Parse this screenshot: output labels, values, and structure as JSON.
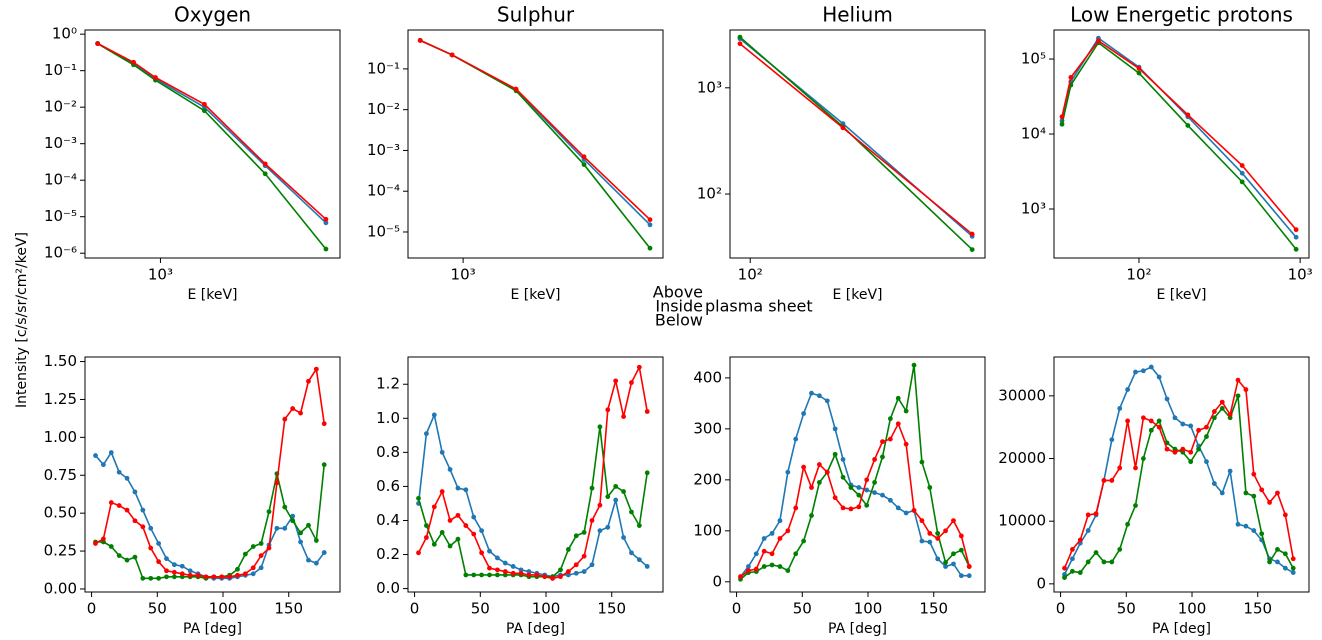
{
  "figure": {
    "ylabel": "Intensity [c/s/sr/cm²/keV]",
    "legend": {
      "labels": [
        "Above",
        "Inside",
        "Below"
      ],
      "colors": [
        "#ff0000",
        "#008000",
        "#0000ff"
      ],
      "text": "plasma sheet"
    }
  },
  "chart_data": [
    {
      "type": "line",
      "title": "Oxygen",
      "xlabel": "E [keV]",
      "xscale": "log",
      "yscale": "log",
      "xlim": [
        380,
        10000
      ],
      "ylim": [
        7.4e-07,
        1.3
      ],
      "xticks": [
        {
          "value": 1000,
          "label": "10³"
        }
      ],
      "yticks": [
        {
          "value": 1,
          "label": "10⁰"
        },
        {
          "value": 0.1,
          "label": "10⁻¹"
        },
        {
          "value": 0.01,
          "label": "10⁻²"
        },
        {
          "value": 0.001,
          "label": "10⁻³"
        },
        {
          "value": 0.0001,
          "label": "10⁻⁴"
        },
        {
          "value": 1e-05,
          "label": "10⁻⁵"
        },
        {
          "value": 1e-06,
          "label": "10⁻⁶"
        }
      ],
      "x": [
        447,
        708,
        938,
        1757,
        3831,
        8350
      ],
      "series": [
        {
          "color": "#1f77b4",
          "values": [
            0.56,
            0.16,
            0.06,
            0.01,
            0.00025,
            6.8e-06
          ]
        },
        {
          "color": "#008000",
          "values": [
            0.55,
            0.145,
            0.055,
            0.008,
            0.00015,
            1.3e-06
          ]
        },
        {
          "color": "#ff0000",
          "values": [
            0.55,
            0.17,
            0.065,
            0.012,
            0.00028,
            8.5e-06
          ]
        }
      ]
    },
    {
      "type": "line",
      "title": "Sulphur",
      "xlabel": "E [keV]",
      "xscale": "log",
      "yscale": "log",
      "xlim": [
        530,
        10000
      ],
      "ylim": [
        2.3e-06,
        0.9
      ],
      "xticks": [
        {
          "value": 1000,
          "label": "10³"
        }
      ],
      "yticks": [
        {
          "value": 0.1,
          "label": "10⁻¹"
        },
        {
          "value": 0.01,
          "label": "10⁻²"
        },
        {
          "value": 0.001,
          "label": "10⁻³"
        },
        {
          "value": 0.0001,
          "label": "10⁻⁴"
        },
        {
          "value": 1e-05,
          "label": "10⁻⁵"
        }
      ],
      "x": [
        610,
        881,
        1841,
        4027,
        8610
      ],
      "series": [
        {
          "color": "#1f77b4",
          "values": [
            0.5,
            0.22,
            0.031,
            0.0006,
            1.5e-05
          ]
        },
        {
          "color": "#008000",
          "values": [
            0.5,
            0.22,
            0.029,
            0.00045,
            4e-06
          ]
        },
        {
          "color": "#ff0000",
          "values": [
            0.5,
            0.22,
            0.032,
            0.0007,
            2e-05
          ]
        }
      ]
    },
    {
      "type": "line",
      "title": "Helium",
      "xlabel": "E [keV]",
      "xscale": "log",
      "yscale": "log",
      "xlim": [
        83,
        870
      ],
      "ylim": [
        25,
        3500
      ],
      "xticks": [
        {
          "value": 100,
          "label": "10²"
        }
      ],
      "yticks": [
        {
          "value": 1000,
          "label": "10³"
        },
        {
          "value": 100,
          "label": "10²"
        }
      ],
      "x": [
        91,
        235,
        773
      ],
      "series": [
        {
          "color": "#1f77b4",
          "values": [
            2900,
            460,
            40
          ]
        },
        {
          "color": "#008000",
          "values": [
            3000,
            430,
            30
          ]
        },
        {
          "color": "#ff0000",
          "values": [
            2600,
            420,
            42
          ]
        }
      ]
    },
    {
      "type": "line",
      "title": "Low Energetic protons",
      "xlabel": "E [keV]",
      "xscale": "log",
      "yscale": "log",
      "xlim": [
        29.7,
        1135
      ],
      "ylim": [
        222,
        244000
      ],
      "xticks": [
        {
          "value": 100,
          "label": "10²"
        },
        {
          "value": 1000,
          "label": "10³"
        }
      ],
      "yticks": [
        {
          "value": 100000,
          "label": "10⁵"
        },
        {
          "value": 10000,
          "label": "10⁴"
        },
        {
          "value": 1000,
          "label": "10³"
        }
      ],
      "x": [
        33.3,
        37.8,
        56,
        100,
        201,
        437,
        944
      ],
      "series": [
        {
          "color": "#1f77b4",
          "values": [
            15000,
            50000,
            190000,
            78000,
            17000,
            3000,
            420
          ]
        },
        {
          "color": "#008000",
          "values": [
            13500,
            45000,
            165000,
            65000,
            13000,
            2300,
            290
          ]
        },
        {
          "color": "#ff0000",
          "values": [
            17000,
            57000,
            175000,
            75000,
            18000,
            3800,
            530
          ]
        }
      ]
    },
    {
      "type": "line",
      "xlabel": "PA [deg]",
      "xlim": [
        -5,
        189
      ],
      "ylim": [
        -0.02,
        1.53
      ],
      "xticks": [
        0,
        50,
        100,
        150
      ],
      "yticks": [
        {
          "value": 0,
          "label": "0.00"
        },
        0.25,
        {
          "value": 0.5,
          "label": "0.50"
        },
        0.75,
        {
          "value": 1,
          "label": "1.00"
        },
        1.25,
        {
          "value": 1.5,
          "label": "1.50"
        }
      ],
      "x": [
        3,
        9,
        15,
        21,
        27,
        33,
        39,
        45,
        51,
        57,
        63,
        69,
        75,
        81,
        87,
        93,
        99,
        105,
        111,
        117,
        123,
        129,
        135,
        141,
        147,
        153,
        159,
        165,
        171,
        177
      ],
      "series": [
        {
          "color": "#1f77b4",
          "values": [
            0.88,
            0.82,
            0.9,
            0.77,
            0.73,
            0.64,
            0.52,
            0.4,
            0.3,
            0.2,
            0.16,
            0.15,
            0.12,
            0.1,
            0.08,
            0.07,
            0.07,
            0.07,
            0.08,
            0.09,
            0.1,
            0.14,
            0.29,
            0.4,
            0.4,
            0.48,
            0.31,
            0.19,
            0.17,
            0.24
          ]
        },
        {
          "color": "#008000",
          "values": [
            0.31,
            0.31,
            0.28,
            0.22,
            0.19,
            0.21,
            0.07,
            0.07,
            0.07,
            0.08,
            0.08,
            0.08,
            0.08,
            0.08,
            0.07,
            0.08,
            0.08,
            0.09,
            0.13,
            0.23,
            0.28,
            0.3,
            0.51,
            0.76,
            0.54,
            0.45,
            0.37,
            0.42,
            0.32,
            0.82
          ]
        },
        {
          "color": "#ff0000",
          "values": [
            0.3,
            0.33,
            0.57,
            0.55,
            0.52,
            0.45,
            0.41,
            0.27,
            0.18,
            0.12,
            0.11,
            0.1,
            0.09,
            0.09,
            0.08,
            0.08,
            0.08,
            0.08,
            0.09,
            0.1,
            0.14,
            0.22,
            0.27,
            0.7,
            1.12,
            1.19,
            1.16,
            1.37,
            1.45,
            1.09
          ]
        }
      ]
    },
    {
      "type": "line",
      "xlabel": "PA [deg]",
      "xlim": [
        -5,
        189
      ],
      "ylim": [
        -0.02,
        1.36
      ],
      "xticks": [
        0,
        50,
        100,
        150
      ],
      "yticks": [
        {
          "value": 0,
          "label": "0.0"
        },
        0.2,
        0.4,
        0.6,
        0.8,
        {
          "value": 1,
          "label": "1.0"
        },
        1.2
      ],
      "x": [
        3,
        9,
        15,
        21,
        27,
        33,
        39,
        45,
        51,
        57,
        63,
        69,
        75,
        81,
        87,
        93,
        99,
        105,
        111,
        117,
        123,
        129,
        135,
        141,
        147,
        153,
        159,
        165,
        171,
        177
      ],
      "series": [
        {
          "color": "#1f77b4",
          "values": [
            0.5,
            0.91,
            1.02,
            0.8,
            0.7,
            0.59,
            0.58,
            0.42,
            0.34,
            0.22,
            0.18,
            0.15,
            0.13,
            0.11,
            0.1,
            0.09,
            0.08,
            0.07,
            0.08,
            0.08,
            0.09,
            0.1,
            0.14,
            0.34,
            0.36,
            0.52,
            0.3,
            0.21,
            0.17,
            0.13
          ]
        },
        {
          "color": "#008000",
          "values": [
            0.53,
            0.37,
            0.26,
            0.33,
            0.25,
            0.29,
            0.08,
            0.08,
            0.08,
            0.08,
            0.08,
            0.08,
            0.08,
            0.08,
            0.07,
            0.07,
            0.07,
            0.07,
            0.11,
            0.23,
            0.31,
            0.33,
            0.59,
            0.95,
            0.54,
            0.6,
            0.57,
            0.45,
            0.37,
            0.68
          ]
        },
        {
          "color": "#ff0000",
          "values": [
            0.21,
            0.3,
            0.48,
            0.57,
            0.4,
            0.43,
            0.37,
            0.32,
            0.21,
            0.12,
            0.11,
            0.1,
            0.09,
            0.09,
            0.08,
            0.08,
            0.07,
            0.06,
            0.07,
            0.1,
            0.14,
            0.19,
            0.4,
            0.49,
            1.05,
            1.22,
            1.01,
            1.21,
            1.3,
            1.04
          ]
        }
      ]
    },
    {
      "type": "line",
      "xlabel": "PA [deg]",
      "xlim": [
        -5,
        189
      ],
      "ylim": [
        -20,
        441
      ],
      "xticks": [
        0,
        50,
        100,
        150
      ],
      "yticks": [
        0,
        100,
        200,
        300,
        400
      ],
      "x": [
        3,
        9,
        15,
        21,
        27,
        33,
        39,
        45,
        51,
        57,
        63,
        69,
        75,
        81,
        87,
        93,
        99,
        105,
        111,
        117,
        123,
        129,
        135,
        141,
        147,
        153,
        159,
        165,
        171,
        177
      ],
      "series": [
        {
          "color": "#1f77b4",
          "values": [
            10,
            30,
            55,
            85,
            95,
            120,
            215,
            280,
            330,
            370,
            365,
            355,
            300,
            240,
            190,
            185,
            180,
            175,
            170,
            160,
            145,
            135,
            140,
            80,
            78,
            45,
            30,
            35,
            12,
            12
          ]
        },
        {
          "color": "#008000",
          "values": [
            5,
            18,
            20,
            30,
            33,
            30,
            22,
            55,
            80,
            130,
            195,
            215,
            250,
            205,
            185,
            170,
            150,
            195,
            245,
            320,
            360,
            335,
            425,
            235,
            185,
            95,
            38,
            55,
            62,
            30
          ]
        },
        {
          "color": "#ff0000",
          "values": [
            10,
            22,
            25,
            60,
            55,
            85,
            100,
            145,
            225,
            185,
            230,
            215,
            165,
            145,
            143,
            147,
            200,
            240,
            275,
            280,
            310,
            270,
            140,
            120,
            95,
            85,
            100,
            120,
            90,
            30
          ]
        }
      ]
    },
    {
      "type": "line",
      "xlabel": "PA [deg]",
      "xlim": [
        -5,
        189
      ],
      "ylim": [
        -1300,
        36200
      ],
      "xticks": [
        0,
        50,
        100,
        150
      ],
      "yticks": [
        0,
        10000,
        20000,
        30000
      ],
      "x": [
        3,
        9,
        15,
        21,
        27,
        33,
        39,
        45,
        51,
        57,
        63,
        69,
        75,
        81,
        87,
        93,
        99,
        105,
        111,
        117,
        123,
        129,
        135,
        141,
        147,
        153,
        159,
        165,
        171,
        177
      ],
      "series": [
        {
          "color": "#1f77b4",
          "values": [
            1500,
            4000,
            6500,
            8500,
            11000,
            16500,
            23000,
            28000,
            31000,
            33800,
            34000,
            34600,
            33000,
            29500,
            26500,
            25500,
            25200,
            22000,
            19500,
            16000,
            14500,
            18000,
            9500,
            9200,
            8500,
            7000,
            4000,
            3500,
            2500,
            1800
          ]
        },
        {
          "color": "#008000",
          "values": [
            1000,
            2000,
            1800,
            3500,
            5000,
            3500,
            3500,
            5500,
            9500,
            12500,
            20000,
            24500,
            26000,
            22500,
            21500,
            21000,
            19500,
            21500,
            23500,
            26500,
            28000,
            26500,
            30000,
            14500,
            14000,
            8000,
            3500,
            5500,
            4800,
            2500
          ]
        },
        {
          "color": "#ff0000",
          "values": [
            2500,
            5500,
            7000,
            11000,
            11200,
            16500,
            16500,
            18500,
            26000,
            18500,
            26500,
            26000,
            25000,
            21500,
            21000,
            21500,
            21000,
            24500,
            25000,
            27500,
            29000,
            27000,
            32500,
            31000,
            17500,
            15000,
            13000,
            14500,
            11000,
            4000
          ]
        }
      ]
    }
  ]
}
